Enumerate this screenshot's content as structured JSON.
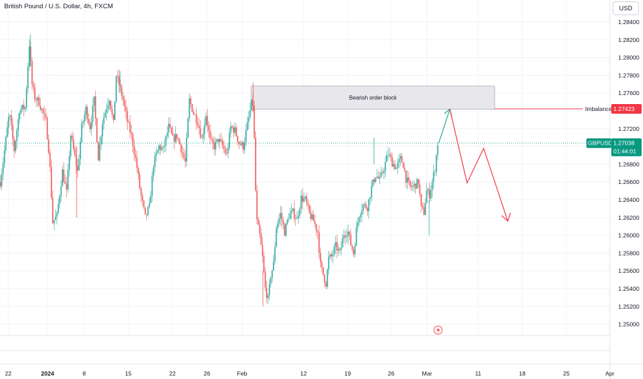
{
  "header": {
    "symbol_title": "British Pound / U.S. Dollar, 4h, FXCM",
    "currency_button": "USD"
  },
  "annotations": {
    "order_block_label": "Bearish order block",
    "imbalance_label": "Imbalance",
    "imbalance_price": "1.27423",
    "last_symbol": "GBPUSD",
    "last_price": "1.27038",
    "countdown": "01:44:01"
  },
  "colors": {
    "up": "#26a69a",
    "down": "#ef5350",
    "arrow_red": "#ef3b4a",
    "arrow_teal": "#22ab94",
    "order_block_fill": "#e8e8ec",
    "price_label_bg": "#089981",
    "imbalance_bg": "#f23645"
  },
  "icons": {
    "event_marker": "lightning-icon"
  },
  "chart_data": {
    "type": "candlestick",
    "title": "British Pound / U.S. Dollar, 4h, FXCM",
    "y_ticks": [
      "1.28400",
      "1.28200",
      "1.28000",
      "1.27800",
      "1.27600",
      "1.27400",
      "1.27200",
      "1.27000",
      "1.26800",
      "1.26600",
      "1.26400",
      "1.26200",
      "1.26000",
      "1.25800",
      "1.25600",
      "1.25400",
      "1.25200",
      "1.25000"
    ],
    "ylim": [
      1.2495,
      1.2855
    ],
    "x_ticks": [
      "22",
      "2024",
      "8",
      "15",
      "22",
      "26",
      "Feb",
      "12",
      "19",
      "26",
      "Mar",
      "11",
      "18",
      "25",
      "Apr"
    ],
    "grid": true,
    "price_path": [
      [
        0,
        1.266
      ],
      [
        4,
        1.2683
      ],
      [
        13,
        1.2738
      ],
      [
        20,
        1.2696
      ],
      [
        28,
        1.2742
      ],
      [
        36,
        1.2744
      ],
      [
        42,
        1.2815
      ],
      [
        46,
        1.277
      ],
      [
        50,
        1.2755
      ],
      [
        56,
        1.275
      ],
      [
        66,
        1.2728
      ],
      [
        71,
        1.269
      ],
      [
        76,
        1.2615
      ],
      [
        82,
        1.2622
      ],
      [
        90,
        1.2672
      ],
      [
        96,
        1.2648
      ],
      [
        102,
        1.2713
      ],
      [
        108,
        1.2688
      ],
      [
        112,
        1.2672
      ],
      [
        118,
        1.2722
      ],
      [
        124,
        1.2742
      ],
      [
        130,
        1.2722
      ],
      [
        136,
        1.2752
      ],
      [
        142,
        1.2688
      ],
      [
        148,
        1.2728
      ],
      [
        158,
        1.2755
      ],
      [
        164,
        1.2725
      ],
      [
        168,
        1.278
      ],
      [
        172,
        1.277
      ],
      [
        178,
        1.2752
      ],
      [
        184,
        1.2728
      ],
      [
        190,
        1.2712
      ],
      [
        197,
        1.2682
      ],
      [
        203,
        1.2648
      ],
      [
        210,
        1.262
      ],
      [
        216,
        1.2632
      ],
      [
        222,
        1.268
      ],
      [
        230,
        1.27
      ],
      [
        236,
        1.2696
      ],
      [
        244,
        1.2722
      ],
      [
        250,
        1.2708
      ],
      [
        256,
        1.2712
      ],
      [
        262,
        1.2698
      ],
      [
        268,
        1.2682
      ],
      [
        274,
        1.2752
      ],
      [
        280,
        1.2738
      ],
      [
        286,
        1.2728
      ],
      [
        292,
        1.2708
      ],
      [
        298,
        1.2736
      ],
      [
        304,
        1.2706
      ],
      [
        310,
        1.27
      ],
      [
        316,
        1.2708
      ],
      [
        322,
        1.27
      ],
      [
        328,
        1.269
      ],
      [
        334,
        1.2722
      ],
      [
        340,
        1.2718
      ],
      [
        346,
        1.2704
      ],
      [
        352,
        1.27
      ],
      [
        358,
        1.2724
      ],
      [
        364,
        1.2748
      ],
      [
        367,
        1.2748
      ],
      [
        369,
        1.2668
      ],
      [
        372,
        1.2615
      ],
      [
        376,
        1.26
      ],
      [
        380,
        1.2575
      ],
      [
        384,
        1.254
      ],
      [
        388,
        1.2528
      ],
      [
        392,
        1.2555
      ],
      [
        396,
        1.2568
      ],
      [
        400,
        1.261
      ],
      [
        406,
        1.2624
      ],
      [
        412,
        1.2604
      ],
      [
        418,
        1.2622
      ],
      [
        424,
        1.2626
      ],
      [
        430,
        1.2618
      ],
      [
        436,
        1.2642
      ],
      [
        442,
        1.264
      ],
      [
        448,
        1.2624
      ],
      [
        454,
        1.2616
      ],
      [
        460,
        1.2604
      ],
      [
        464,
        1.2566
      ],
      [
        468,
        1.2556
      ],
      [
        472,
        1.2546
      ],
      [
        476,
        1.2574
      ],
      [
        480,
        1.2576
      ],
      [
        486,
        1.2588
      ],
      [
        492,
        1.258
      ],
      [
        498,
        1.2602
      ],
      [
        504,
        1.2604
      ],
      [
        508,
        1.259
      ],
      [
        512,
        1.258
      ],
      [
        516,
        1.2606
      ],
      [
        520,
        1.2624
      ],
      [
        526,
        1.2634
      ],
      [
        532,
        1.2632
      ],
      [
        538,
        1.2654
      ],
      [
        544,
        1.2668
      ],
      [
        550,
        1.2662
      ],
      [
        556,
        1.2676
      ],
      [
        562,
        1.2692
      ],
      [
        568,
        1.2682
      ],
      [
        574,
        1.2676
      ],
      [
        580,
        1.2686
      ],
      [
        584,
        1.268
      ],
      [
        588,
        1.2664
      ],
      [
        594,
        1.2654
      ],
      [
        600,
        1.2656
      ],
      [
        606,
        1.266
      ],
      [
        610,
        1.263
      ],
      [
        614,
        1.2626
      ],
      [
        618,
        1.265
      ],
      [
        622,
        1.2646
      ],
      [
        626,
        1.266
      ],
      [
        630,
        1.2676
      ],
      [
        634,
        1.2704
      ]
    ],
    "order_block": {
      "label": "Bearish order block",
      "price_top": 1.2768,
      "price_bottom": 1.2742
    },
    "imbalance_level": 1.27423,
    "last_price": 1.27038,
    "projection": [
      [
        1.2704,
        null
      ],
      [
        1.2742,
        null
      ],
      [
        1.2659,
        null
      ],
      [
        1.2698,
        null
      ],
      [
        1.2616,
        null
      ]
    ]
  }
}
